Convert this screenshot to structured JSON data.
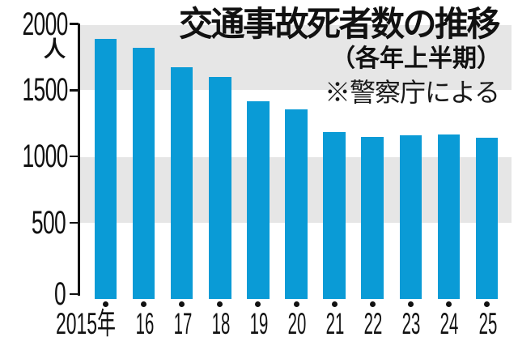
{
  "title": "交通事故死者数の推移",
  "subtitle": "（各年上半期）",
  "source_note": "※警察庁による",
  "y_axis": {
    "unit": "人",
    "ticks": [
      2000,
      1500,
      1000,
      500,
      0
    ]
  },
  "colors": {
    "bar": "#0a9bd6",
    "band": "#e6e6e6",
    "axis": "#111111",
    "text": "#111111"
  },
  "chart_data": {
    "type": "bar",
    "title": "交通事故死者数の推移（各年上半期） ※警察庁による",
    "categories": [
      "2015年",
      "16",
      "17",
      "18",
      "19",
      "20",
      "21",
      "22",
      "23",
      "24",
      "25"
    ],
    "values": [
      1885,
      1820,
      1675,
      1603,
      1418,
      1357,
      1182,
      1150,
      1160,
      1165,
      1140
    ],
    "xlabel": "年",
    "ylabel": "人",
    "ylim": [
      0,
      2000
    ],
    "y_tick_step": 500,
    "grid": "alternating-shaded-bands",
    "band_ranges": [
      [
        2000,
        1500
      ],
      [
        1000,
        500
      ]
    ],
    "legend": "none",
    "point_marker": "black-dot-below-each-bar"
  }
}
